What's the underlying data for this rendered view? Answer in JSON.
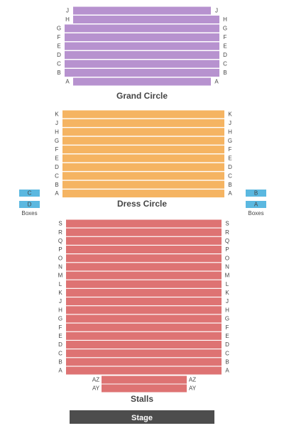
{
  "sections": [
    {
      "name": "Grand Circle",
      "rows": [
        "J",
        "H",
        "G",
        "F",
        "E",
        "D",
        "C",
        "B",
        "A"
      ]
    },
    {
      "name": "Dress Circle",
      "rows": [
        "K",
        "J",
        "H",
        "G",
        "F",
        "E",
        "D",
        "C",
        "B",
        "A"
      ]
    },
    {
      "name": "Stalls",
      "rows": [
        "S",
        "R",
        "Q",
        "P",
        "O",
        "N",
        "M",
        "L",
        "K",
        "J",
        "H",
        "G",
        "F",
        "E",
        "D",
        "C",
        "B",
        "A"
      ],
      "front_rows": [
        "AZ",
        "AY"
      ]
    }
  ],
  "boxes": {
    "left": {
      "rows": [
        "C",
        "D"
      ],
      "label": "Boxes"
    },
    "right": {
      "rows": [
        "B",
        "A"
      ],
      "label": "Boxes"
    }
  },
  "stage": "Stage"
}
